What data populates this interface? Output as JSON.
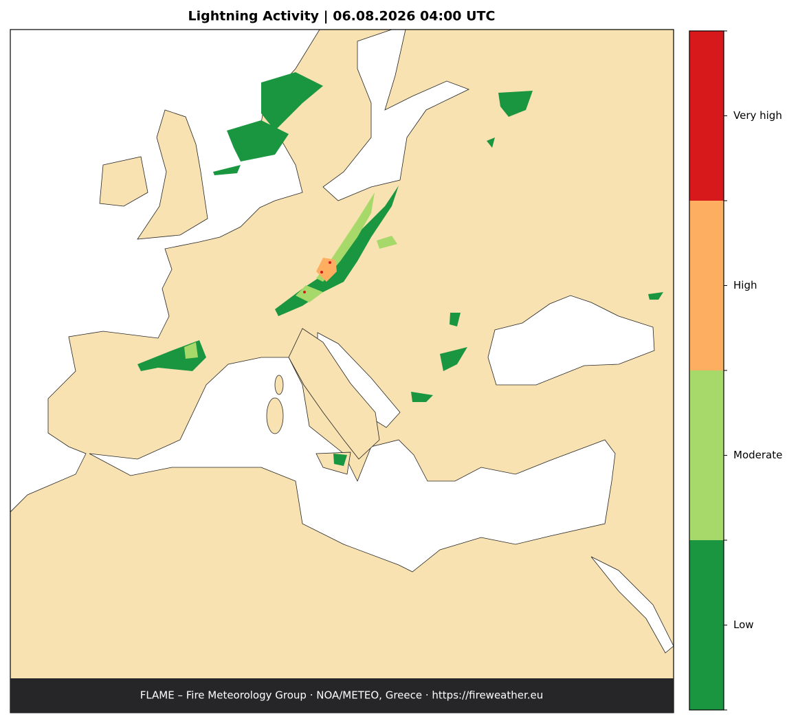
{
  "title": "Lightning Activity  |  06.08.2026 04:00 UTC",
  "footer": "FLAME – Fire Meteorology Group · NOA/METEO, Greece · https://fireweather.eu",
  "legend": {
    "levels": [
      {
        "label": "Low",
        "color": "#1a9641"
      },
      {
        "label": "Moderate",
        "color": "#a6d96a"
      },
      {
        "label": "High",
        "color": "#fdae61"
      },
      {
        "label": "Very high",
        "color": "#d7191c"
      }
    ]
  }
}
